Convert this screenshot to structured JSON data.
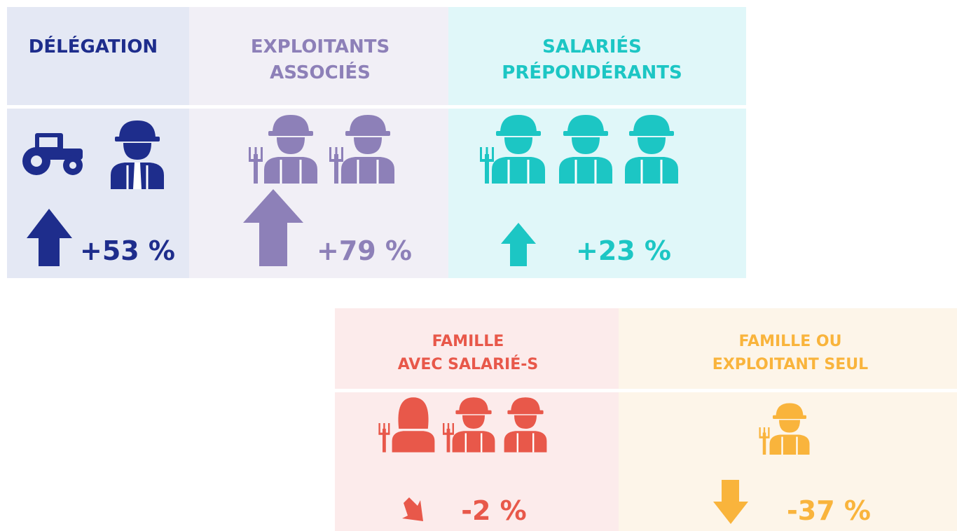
{
  "panels": [
    {
      "title": [
        "DÉLÉGATION"
      ],
      "change": "+53 %"
    },
    {
      "title": [
        "EXPLOITANTS",
        "ASSOCIÉS"
      ],
      "change": "+79 %"
    },
    {
      "title": [
        "SALARIÉS",
        "PRÉPONDÉRANTS"
      ],
      "change": "+23 %"
    },
    {
      "title": [
        "FAMILLE",
        "AVEC SALARIÉ-S"
      ],
      "change": "-2 %"
    },
    {
      "title": [
        "FAMILLE OU",
        "EXPLOITANT SEUL"
      ],
      "change": "-37 %"
    }
  ]
}
